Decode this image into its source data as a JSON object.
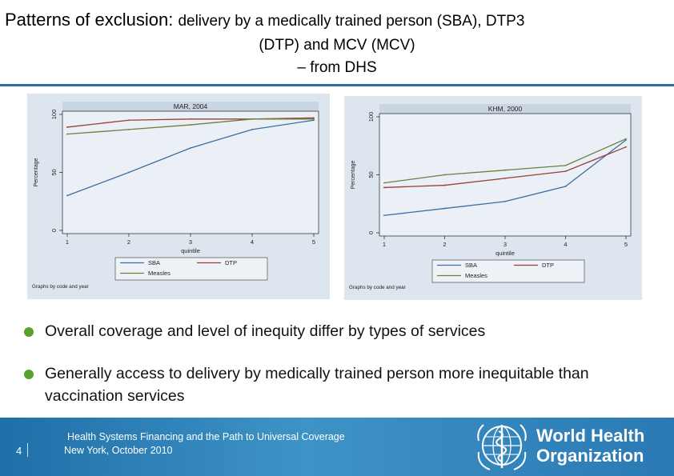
{
  "slide": {
    "title_part1": "Patterns of exclusion: ",
    "title_part2": "delivery by a medically trained person (SBA), DTP3",
    "title_line2": "(DTP) and MCV (MCV)",
    "title_line3": "– from DHS"
  },
  "bullets": [
    "Overall coverage and level of inequity differ by types of services",
    "Generally access to delivery by medically trained person more inequitable than vaccination services"
  ],
  "footer": {
    "page_number": "4",
    "line1": "Health Systems Financing and the Path to Universal Coverage",
    "line2": "New York, October 2010",
    "org_line1": "World Health",
    "org_line2": "Organization"
  },
  "colors": {
    "sba": "#3a6fa6",
    "dtp": "#9a3f36",
    "measles": "#6d7f3d",
    "accent": "#2a6ea0",
    "bullet": "#5aa02c"
  },
  "chart_data": [
    {
      "type": "line",
      "title": "MAR, 2004",
      "x": [
        1,
        2,
        3,
        4,
        5
      ],
      "xlabel": "quintile",
      "ylabel": "Percentage",
      "ylim": [
        0,
        100
      ],
      "yticks": [
        0,
        50,
        100
      ],
      "series": [
        {
          "name": "SBA",
          "values": [
            30,
            50,
            71,
            87,
            95
          ]
        },
        {
          "name": "DTP",
          "values": [
            89,
            95,
            96,
            96,
            97
          ]
        },
        {
          "name": "Measles",
          "values": [
            83,
            87,
            91,
            96,
            96
          ]
        }
      ],
      "legend": [
        "SBA",
        "DTP",
        "Measles"
      ],
      "note": "Graphs by code and year"
    },
    {
      "type": "line",
      "title": "KHM, 2000",
      "x": [
        1,
        2,
        3,
        4,
        5
      ],
      "xlabel": "quintile",
      "ylabel": "Percentage",
      "ylim": [
        0,
        100
      ],
      "yticks": [
        0,
        50,
        100
      ],
      "series": [
        {
          "name": "SBA",
          "values": [
            15,
            21,
            27,
            40,
            80
          ]
        },
        {
          "name": "DTP",
          "values": [
            39,
            41,
            47,
            53,
            74
          ]
        },
        {
          "name": "Measles",
          "values": [
            43,
            50,
            54,
            58,
            81
          ]
        }
      ],
      "legend": [
        "SBA",
        "DTP",
        "Measles"
      ],
      "note": "Graphs by code and year"
    }
  ]
}
